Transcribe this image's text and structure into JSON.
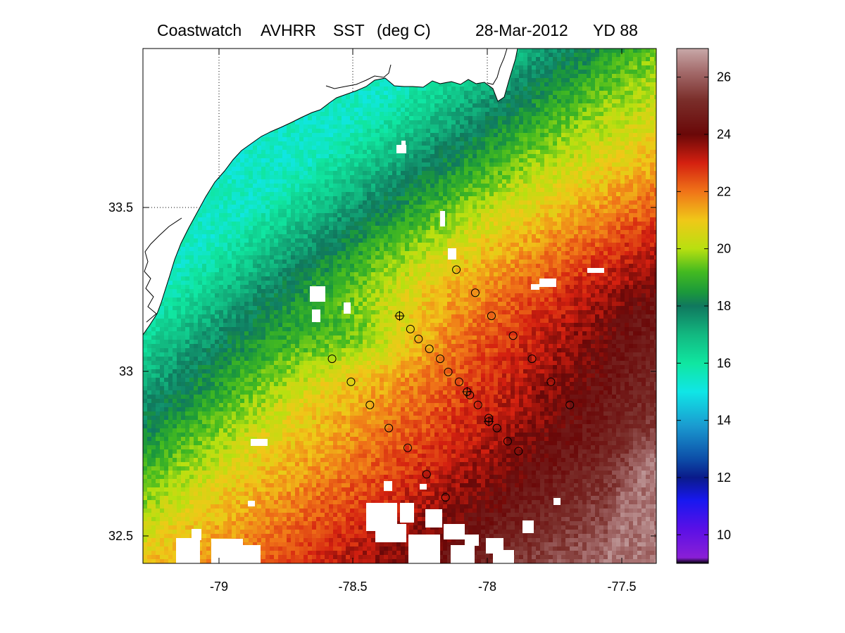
{
  "title": {
    "source": "Coastwatch",
    "sensor": "AVHRR",
    "product": "SST",
    "units": "(deg C)",
    "date": "28-Mar-2012",
    "yearday": "YD 88"
  },
  "map": {
    "lon_range": [
      -79.28,
      -77.38
    ],
    "lat_range": [
      32.42,
      33.98
    ],
    "lon_ticks": [
      "-79",
      "-78.5",
      "-78",
      "-77.5"
    ],
    "lat_ticks": [
      "32.5",
      "33",
      "33.5"
    ],
    "gridlines": "dotted over land only",
    "land_color": "#ffffff",
    "cloud_mask_color": "#ffffff",
    "coastline_color": "#000000"
  },
  "colorbar": {
    "range": [
      9,
      27
    ],
    "ticks": [
      "10",
      "12",
      "14",
      "16",
      "18",
      "20",
      "22",
      "24",
      "26"
    ],
    "stops": [
      {
        "v": 9.0,
        "c": "#000000"
      },
      {
        "v": 9.2,
        "c": "#8a1fd6"
      },
      {
        "v": 10.2,
        "c": "#5a10e6"
      },
      {
        "v": 11.2,
        "c": "#1818f0"
      },
      {
        "v": 12.0,
        "c": "#0a1a8a"
      },
      {
        "v": 12.6,
        "c": "#0c4aa6"
      },
      {
        "v": 13.8,
        "c": "#1a9ad0"
      },
      {
        "v": 15.0,
        "c": "#10e6e6"
      },
      {
        "v": 16.0,
        "c": "#10e6a0"
      },
      {
        "v": 17.0,
        "c": "#12b880"
      },
      {
        "v": 18.0,
        "c": "#10785e"
      },
      {
        "v": 18.5,
        "c": "#1c9a3a"
      },
      {
        "v": 19.2,
        "c": "#44ba20"
      },
      {
        "v": 20.0,
        "c": "#b8e010"
      },
      {
        "v": 21.0,
        "c": "#f0c818"
      },
      {
        "v": 22.0,
        "c": "#f07418"
      },
      {
        "v": 23.0,
        "c": "#d42010"
      },
      {
        "v": 24.0,
        "c": "#6a0808"
      },
      {
        "v": 25.2,
        "c": "#7a2e2a"
      },
      {
        "v": 26.2,
        "c": "#a46c6c"
      },
      {
        "v": 27.0,
        "c": "#c8a8a8"
      }
    ]
  },
  "stations": {
    "circles": [
      [
        -78.12,
        33.31
      ],
      [
        -78.05,
        33.24
      ],
      [
        -77.99,
        33.17
      ],
      [
        -77.91,
        33.11
      ],
      [
        -77.84,
        33.04
      ],
      [
        -77.77,
        32.97
      ],
      [
        -77.7,
        32.9
      ],
      [
        -78.33,
        33.17
      ],
      [
        -78.29,
        33.13
      ],
      [
        -78.26,
        33.1
      ],
      [
        -78.22,
        33.07
      ],
      [
        -78.18,
        33.04
      ],
      [
        -78.15,
        33.0
      ],
      [
        -78.11,
        32.97
      ],
      [
        -78.08,
        32.94
      ],
      [
        -78.07,
        32.93
      ],
      [
        -78.04,
        32.9
      ],
      [
        -78.0,
        32.86
      ],
      [
        -78.0,
        32.85
      ],
      [
        -77.97,
        32.83
      ],
      [
        -77.93,
        32.79
      ],
      [
        -77.89,
        32.76
      ],
      [
        -78.58,
        33.04
      ],
      [
        -78.51,
        32.97
      ],
      [
        -78.44,
        32.9
      ],
      [
        -78.37,
        32.83
      ],
      [
        -78.3,
        32.77
      ],
      [
        -78.23,
        32.69
      ],
      [
        -78.16,
        32.62
      ]
    ],
    "crosses": [
      [
        -78.33,
        33.17
      ],
      [
        -78.08,
        32.94
      ],
      [
        -78.0,
        32.85
      ]
    ]
  }
}
